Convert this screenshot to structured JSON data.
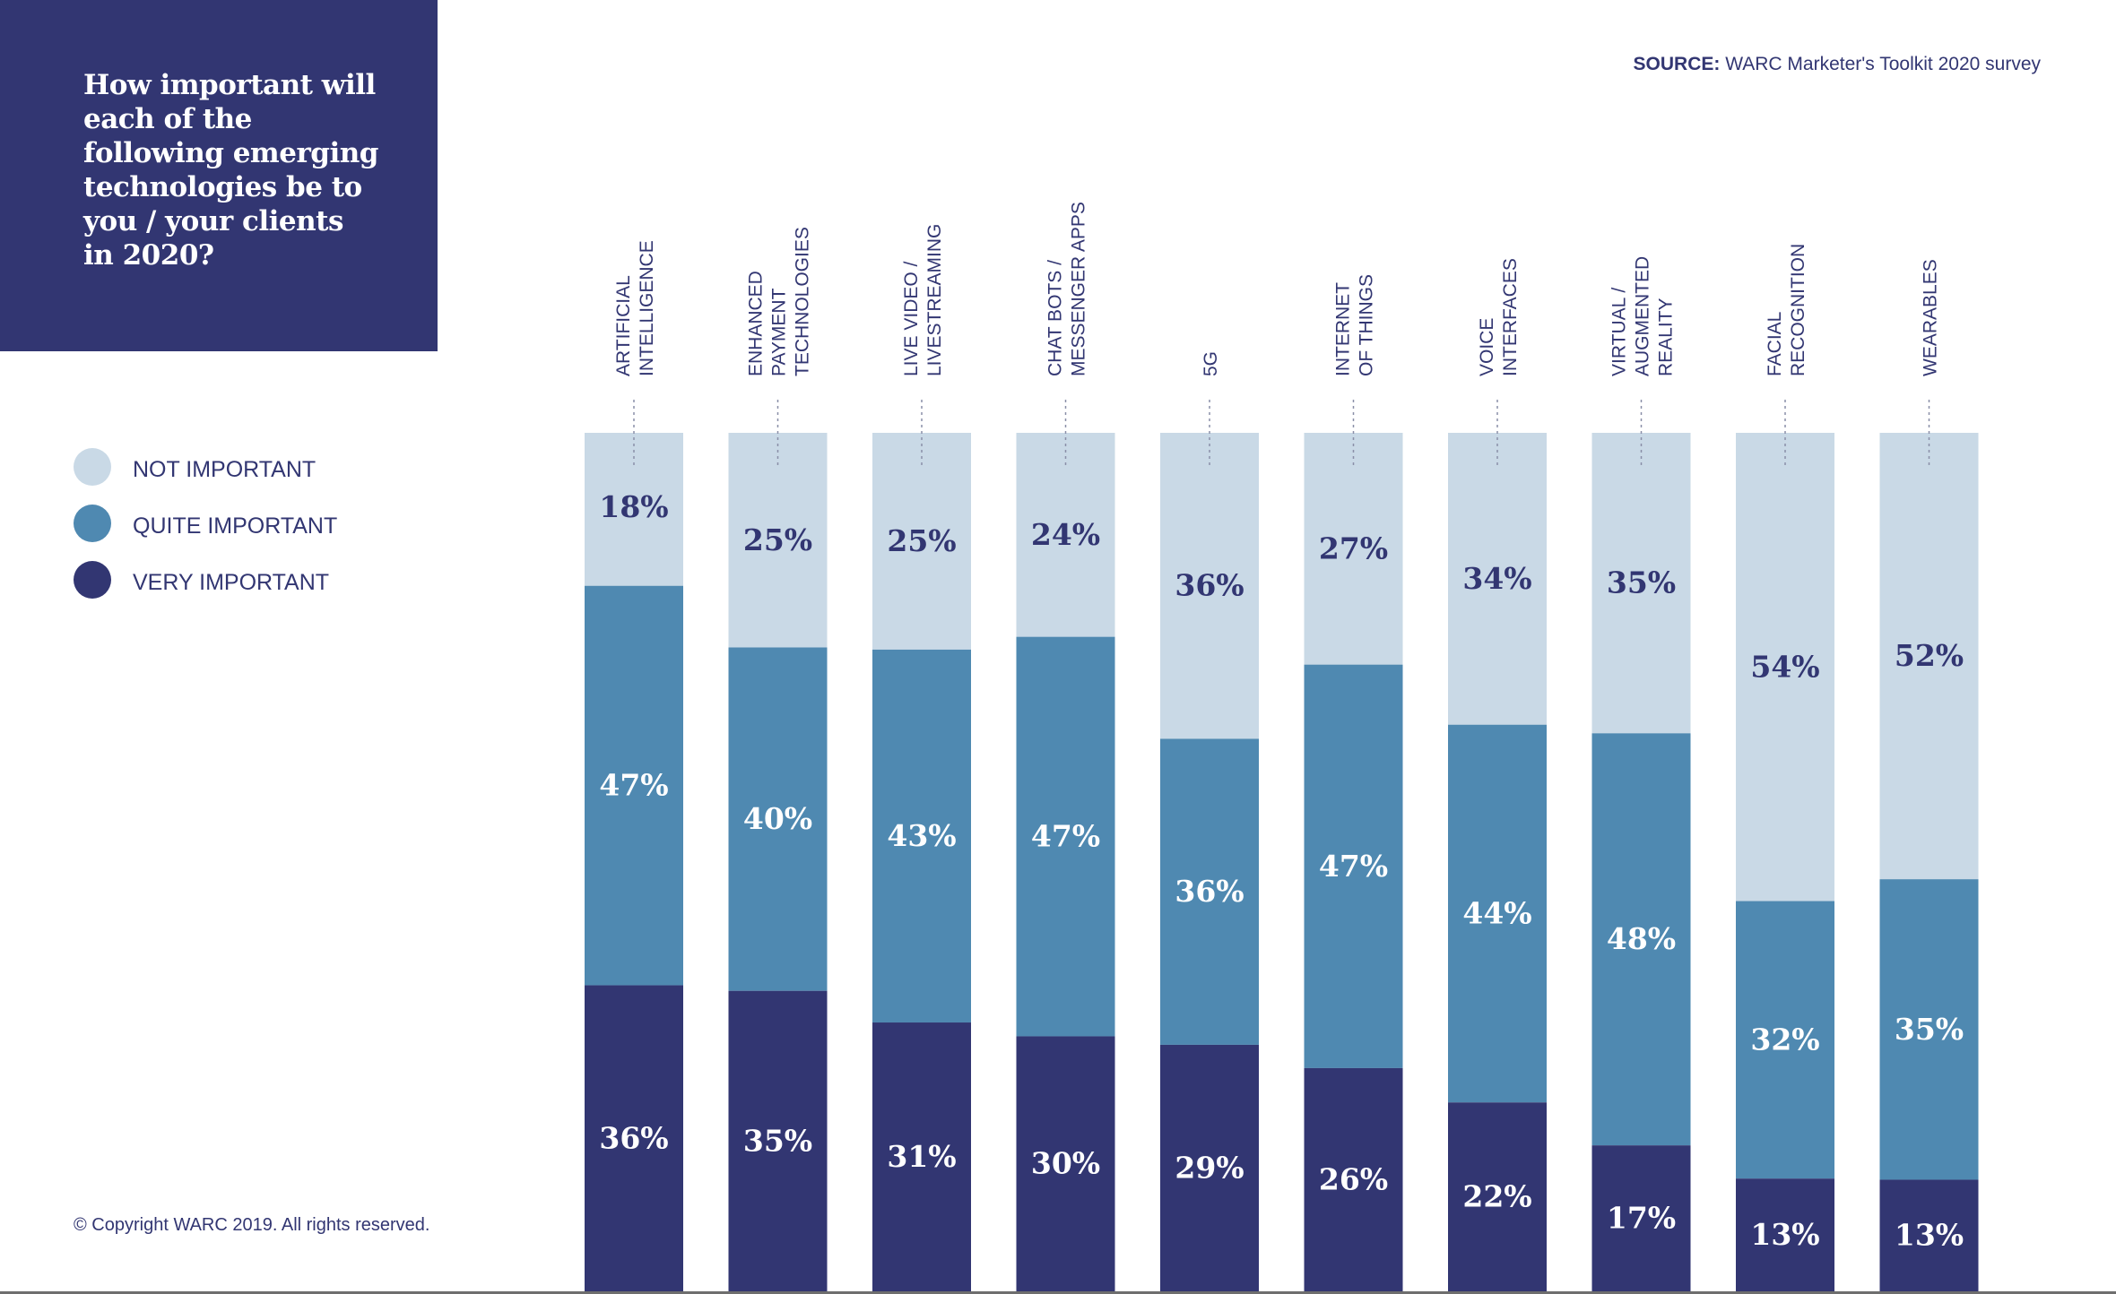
{
  "title": "How important will each of the following emerging technologies be to you / your clients in 2020?",
  "source": {
    "label": "SOURCE:",
    "text": "WARC Marketer's Toolkit 2020 survey"
  },
  "copyright": "© Copyright WARC 2019. All rights reserved.",
  "colors": {
    "title_box": "#323672",
    "not_important": "#c9d9e6",
    "quite_important": "#4f89b1",
    "very_important": "#323672",
    "text": "#323672"
  },
  "chart_data": {
    "type": "bar",
    "stacked": true,
    "legend_position": "left",
    "categories": [
      [
        "ARTIFICIAL",
        "INTELLIGENCE"
      ],
      [
        "ENHANCED",
        "PAYMENT",
        "TECHNOLOGIES"
      ],
      [
        "LIVE VIDEO /",
        "LIVESTREAMING"
      ],
      [
        "CHAT BOTS /",
        "MESSENGER APPS"
      ],
      [
        "5G"
      ],
      [
        "INTERNET",
        "OF THINGS"
      ],
      [
        "VOICE",
        "INTERFACES"
      ],
      [
        "VIRTUAL /",
        "AUGMENTED",
        "REALITY"
      ],
      [
        "FACIAL",
        "RECOGNITION"
      ],
      [
        "WEARABLES"
      ]
    ],
    "series": [
      {
        "name": "NOT IMPORTANT",
        "values": [
          18,
          25,
          25,
          24,
          36,
          27,
          34,
          35,
          54,
          52
        ]
      },
      {
        "name": "QUITE IMPORTANT",
        "values": [
          47,
          40,
          43,
          47,
          36,
          47,
          44,
          48,
          32,
          35
        ]
      },
      {
        "name": "VERY IMPORTANT",
        "values": [
          36,
          35,
          31,
          30,
          29,
          26,
          22,
          17,
          13,
          13
        ]
      }
    ],
    "value_suffix": "%"
  }
}
